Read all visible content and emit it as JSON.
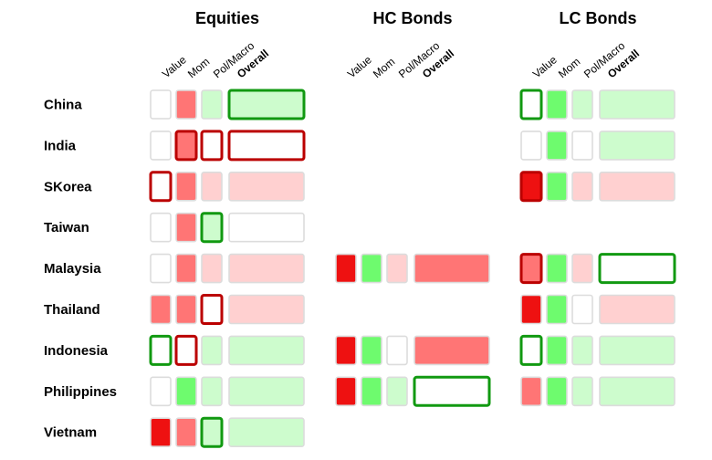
{
  "chart_data": {
    "type": "heatmap",
    "groups": [
      {
        "title": "Equities",
        "columns": [
          "Value",
          "Mom",
          "Pol/Macro",
          "Overall"
        ]
      },
      {
        "title": "HC Bonds",
        "columns": [
          "Value",
          "Mom",
          "Pol/Macro",
          "Overall"
        ]
      },
      {
        "title": "LC Bonds",
        "columns": [
          "Value",
          "Mom",
          "Pol/Macro",
          "Overall"
        ]
      }
    ],
    "rows": [
      "China",
      "India",
      "SKorea",
      "Taiwan",
      "Malaysia",
      "Thailand",
      "Indonesia",
      "Philippines",
      "Vietnam"
    ],
    "legend_note": "cell values: 'sr'=strong red, 'r'=red, 'lr'=light red, 'w'=white, 'lg'=light green, 'g'=green, null=not shown; border values: 'red'/'green' = highlighted outline",
    "fill_colors": {
      "sr": "#ee1111",
      "r": "#ff7575",
      "lr": "#ffd0d0",
      "w": "#ffffff",
      "lg": "#cdfccd",
      "g": "#6efb6e"
    },
    "border_colors": {
      "default": "#dcdcdc",
      "red": "#bb0000",
      "green": "#119911"
    },
    "cells": [
      [
        [
          {
            "v": "w"
          },
          {
            "v": "r"
          },
          {
            "v": "lg"
          },
          {
            "v": "lg",
            "b": "green"
          }
        ],
        [
          null,
          null,
          null,
          null
        ],
        [
          {
            "v": "w",
            "b": "green"
          },
          {
            "v": "g"
          },
          {
            "v": "lg"
          },
          {
            "v": "lg"
          }
        ]
      ],
      [
        [
          {
            "v": "w"
          },
          {
            "v": "r",
            "b": "red"
          },
          {
            "v": "w",
            "b": "red"
          },
          {
            "v": "w",
            "b": "red"
          }
        ],
        [
          null,
          null,
          null,
          null
        ],
        [
          {
            "v": "w"
          },
          {
            "v": "g"
          },
          {
            "v": "w"
          },
          {
            "v": "lg"
          }
        ]
      ],
      [
        [
          {
            "v": "w",
            "b": "red"
          },
          {
            "v": "r"
          },
          {
            "v": "lr"
          },
          {
            "v": "lr"
          }
        ],
        [
          null,
          null,
          null,
          null
        ],
        [
          {
            "v": "sr",
            "b": "red"
          },
          {
            "v": "g"
          },
          {
            "v": "lr"
          },
          {
            "v": "lr"
          }
        ]
      ],
      [
        [
          {
            "v": "w"
          },
          {
            "v": "r"
          },
          {
            "v": "lg",
            "b": "green"
          },
          {
            "v": "w"
          }
        ],
        [
          null,
          null,
          null,
          null
        ],
        [
          null,
          null,
          null,
          null
        ]
      ],
      [
        [
          {
            "v": "w"
          },
          {
            "v": "r"
          },
          {
            "v": "lr"
          },
          {
            "v": "lr"
          }
        ],
        [
          {
            "v": "sr"
          },
          {
            "v": "g"
          },
          {
            "v": "lr"
          },
          {
            "v": "r"
          }
        ],
        [
          {
            "v": "r",
            "b": "red"
          },
          {
            "v": "g"
          },
          {
            "v": "lr"
          },
          {
            "v": "w",
            "b": "green"
          }
        ]
      ],
      [
        [
          {
            "v": "r"
          },
          {
            "v": "r"
          },
          {
            "v": "w",
            "b": "red"
          },
          {
            "v": "lr"
          }
        ],
        [
          null,
          null,
          null,
          null
        ],
        [
          {
            "v": "sr"
          },
          {
            "v": "g"
          },
          {
            "v": "w"
          },
          {
            "v": "lr"
          }
        ]
      ],
      [
        [
          {
            "v": "w",
            "b": "green"
          },
          {
            "v": "w",
            "b": "red"
          },
          {
            "v": "lg"
          },
          {
            "v": "lg"
          }
        ],
        [
          {
            "v": "sr"
          },
          {
            "v": "g"
          },
          {
            "v": "w"
          },
          {
            "v": "r"
          }
        ],
        [
          {
            "v": "w",
            "b": "green"
          },
          {
            "v": "g"
          },
          {
            "v": "lg"
          },
          {
            "v": "lg"
          }
        ]
      ],
      [
        [
          {
            "v": "w"
          },
          {
            "v": "g"
          },
          {
            "v": "lg"
          },
          {
            "v": "lg"
          }
        ],
        [
          {
            "v": "sr"
          },
          {
            "v": "g"
          },
          {
            "v": "lg"
          },
          {
            "v": "w",
            "b": "green"
          }
        ],
        [
          {
            "v": "r"
          },
          {
            "v": "g"
          },
          {
            "v": "lg"
          },
          {
            "v": "lg"
          }
        ]
      ],
      [
        [
          {
            "v": "sr"
          },
          {
            "v": "r"
          },
          {
            "v": "lg",
            "b": "green"
          },
          {
            "v": "lg"
          }
        ],
        [
          null,
          null,
          null,
          null
        ],
        [
          null,
          null,
          null,
          null
        ]
      ]
    ]
  }
}
